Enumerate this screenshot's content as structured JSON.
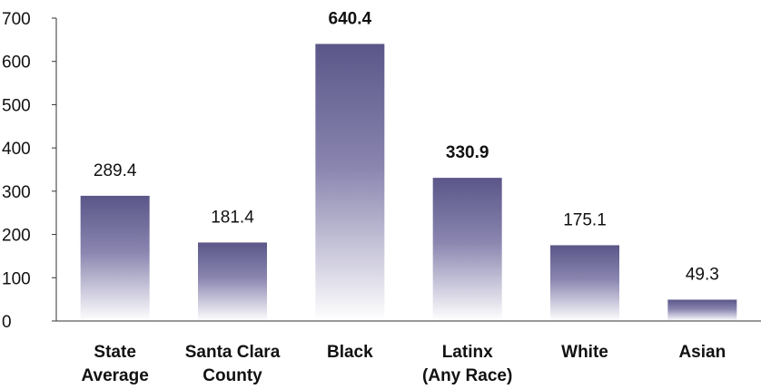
{
  "chart_data": {
    "type": "bar",
    "title": "",
    "xlabel": "",
    "ylabel": "",
    "ylim": [
      0,
      700
    ],
    "yticks": [
      0,
      100,
      200,
      300,
      400,
      500,
      600,
      700
    ],
    "grid": false,
    "legend": "none",
    "categories": [
      [
        "State",
        "Average"
      ],
      [
        "Santa Clara",
        "County"
      ],
      [
        "Black"
      ],
      [
        "Latinx",
        "(Any Race)"
      ],
      [
        "White"
      ],
      [
        "Asian"
      ]
    ],
    "values": [
      289.4,
      181.4,
      640.4,
      330.9,
      175.1,
      49.3
    ],
    "value_labels": [
      "289.4",
      "181.4",
      "640.4",
      "330.9",
      "175.1",
      "49.3"
    ],
    "bold_value_labels": [
      false,
      false,
      true,
      true,
      false,
      false
    ],
    "colors": {
      "bar_top": "#5a5688",
      "bar_bottom": "#ffffff",
      "axis": "#333333",
      "text": "#111111"
    }
  }
}
